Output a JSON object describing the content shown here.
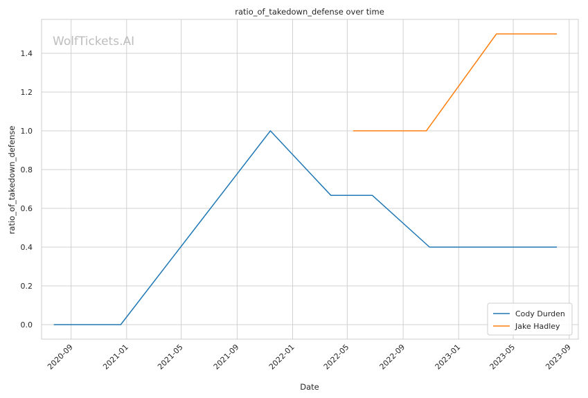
{
  "chart_data": {
    "type": "line",
    "title": "ratio_of_takedown_defense over time",
    "xlabel": "Date",
    "ylabel": "ratio_of_takedown_defense",
    "watermark": "WolfTickets.AI",
    "x_ticks": [
      "2020-09",
      "2021-01",
      "2021-05",
      "2021-09",
      "2022-01",
      "2022-05",
      "2022-09",
      "2023-01",
      "2023-05",
      "2023-09"
    ],
    "y_ticks": [
      "0.0",
      "0.2",
      "0.4",
      "0.6",
      "0.8",
      "1.0",
      "1.2",
      "1.4"
    ],
    "xlim": [
      "2020-06-28",
      "2023-09-21"
    ],
    "ylim": [
      -0.075,
      1.575
    ],
    "grid": true,
    "legend_position": "lower-right",
    "series": [
      {
        "name": "Cody Durden",
        "color": "#1f77b4",
        "points": [
          {
            "x": "2020-07-25",
            "y": 0.0
          },
          {
            "x": "2020-12-19",
            "y": 0.0
          },
          {
            "x": "2021-11-13",
            "y": 1.0
          },
          {
            "x": "2022-03-26",
            "y": 0.667
          },
          {
            "x": "2022-06-25",
            "y": 0.667
          },
          {
            "x": "2022-10-29",
            "y": 0.4
          },
          {
            "x": "2023-08-05",
            "y": 0.4
          }
        ]
      },
      {
        "name": "Jake Hadley",
        "color": "#ff7f0e",
        "points": [
          {
            "x": "2022-05-14",
            "y": 1.0
          },
          {
            "x": "2022-10-22",
            "y": 1.0
          },
          {
            "x": "2023-03-25",
            "y": 1.5
          },
          {
            "x": "2023-08-05",
            "y": 1.5
          }
        ]
      }
    ]
  }
}
